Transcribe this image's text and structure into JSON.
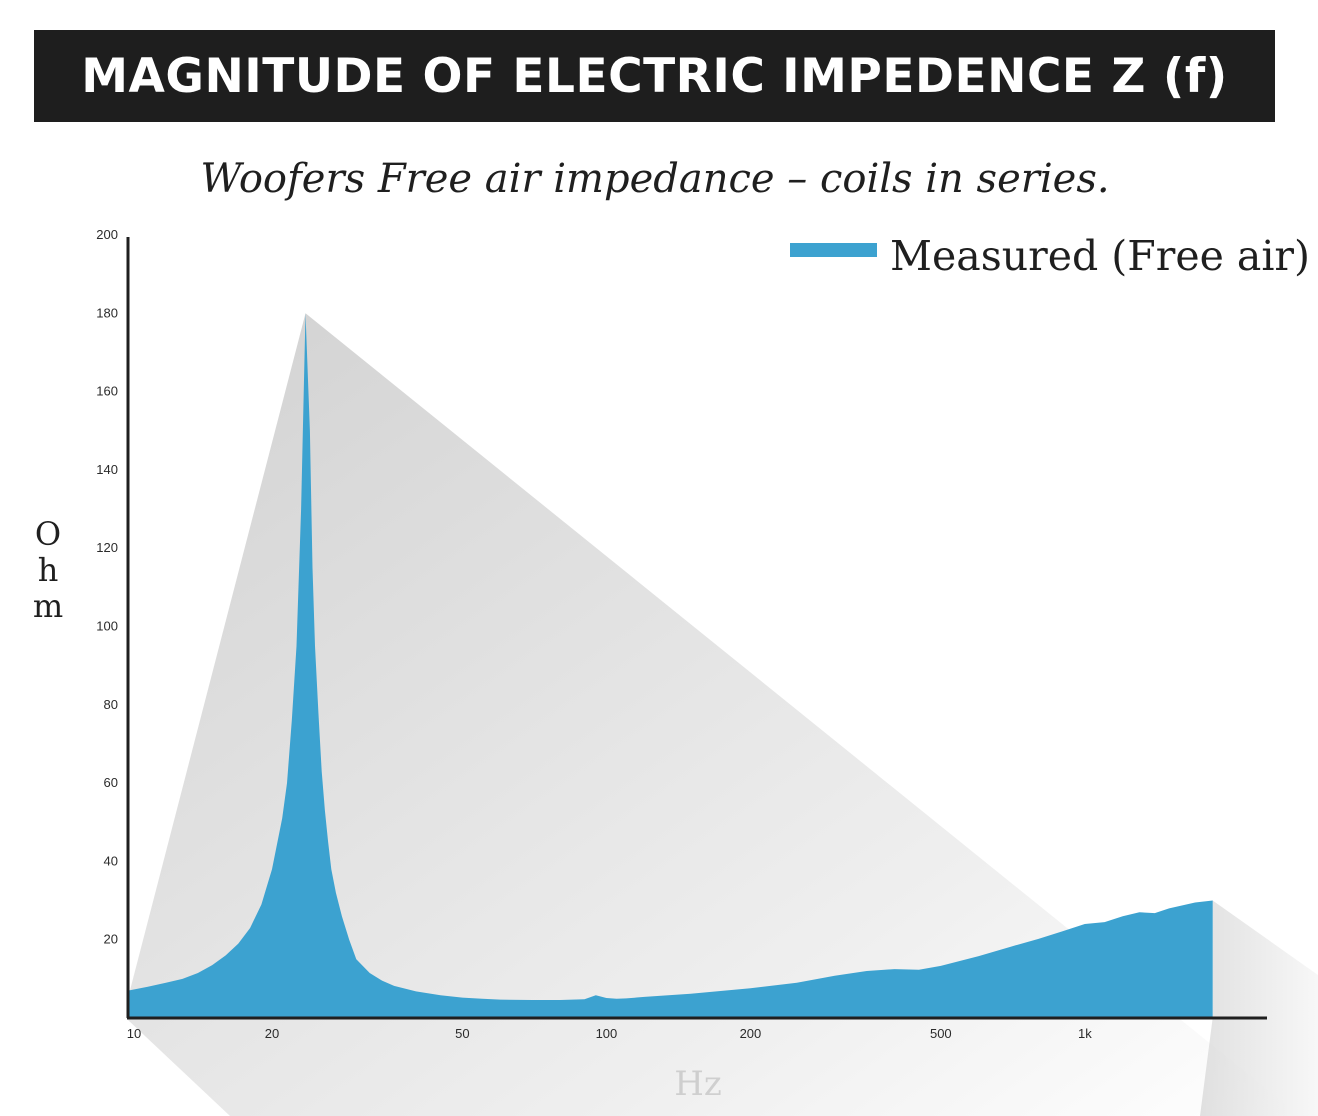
{
  "header": {
    "title": "MAGNITUDE OF ELECTRIC IMPEDENCE Z (f)"
  },
  "chart_data": {
    "type": "area",
    "title": "MAGNITUDE OF ELECTRIC IMPEDENCE Z (f)",
    "subtitle": "Woofers Free air impedance – coils in series.",
    "xlabel": "Hz",
    "ylabel": [
      "O",
      "h",
      "m"
    ],
    "x_scale": "log",
    "xlim": [
      10,
      2000
    ],
    "ylim": [
      0,
      200
    ],
    "x_ticks": [
      {
        "value": 10,
        "label": "10"
      },
      {
        "value": 20,
        "label": "20"
      },
      {
        "value": 50,
        "label": "50"
      },
      {
        "value": 100,
        "label": "100"
      },
      {
        "value": 200,
        "label": "200"
      },
      {
        "value": 500,
        "label": "500"
      },
      {
        "value": 1000,
        "label": "1k"
      }
    ],
    "y_ticks": [
      20,
      40,
      60,
      80,
      100,
      120,
      140,
      160,
      180,
      200
    ],
    "grid": false,
    "legend_position": "top-right",
    "series": [
      {
        "name": "Measured (Free air)",
        "color": "#3ca2d0",
        "x": [
          10,
          11,
          12,
          13,
          14,
          15,
          16,
          17,
          18,
          19,
          20,
          21,
          21.5,
          22,
          22.5,
          23,
          23.5,
          24,
          24.3,
          24.6,
          25,
          25.4,
          25.8,
          26.2,
          26.6,
          27.2,
          28,
          29,
          30,
          32,
          34,
          36,
          40,
          45,
          50,
          55,
          60,
          70,
          80,
          90,
          95,
          100,
          105,
          110,
          120,
          150,
          200,
          250,
          300,
          350,
          400,
          450,
          500,
          600,
          700,
          800,
          900,
          1000,
          1100,
          1200,
          1300,
          1400,
          1500,
          1700,
          1850
        ],
        "y": [
          7,
          8,
          9,
          10,
          11.5,
          13.5,
          16,
          19,
          23,
          29,
          38,
          51,
          60,
          76,
          95,
          130,
          180,
          150,
          115,
          95,
          78,
          63,
          53,
          45,
          38,
          32,
          26,
          20,
          15,
          11.5,
          9.5,
          8.2,
          6.8,
          5.8,
          5.2,
          4.9,
          4.7,
          4.6,
          4.6,
          4.8,
          5.8,
          5.1,
          4.9,
          5.0,
          5.4,
          6.2,
          7.6,
          9.0,
          10.8,
          12.0,
          12.5,
          12.3,
          13.3,
          15.8,
          18.2,
          20.2,
          22.2,
          24.0,
          24.5,
          26.0,
          27.0,
          26.8,
          28.0,
          29.5,
          30.0
        ]
      }
    ]
  }
}
